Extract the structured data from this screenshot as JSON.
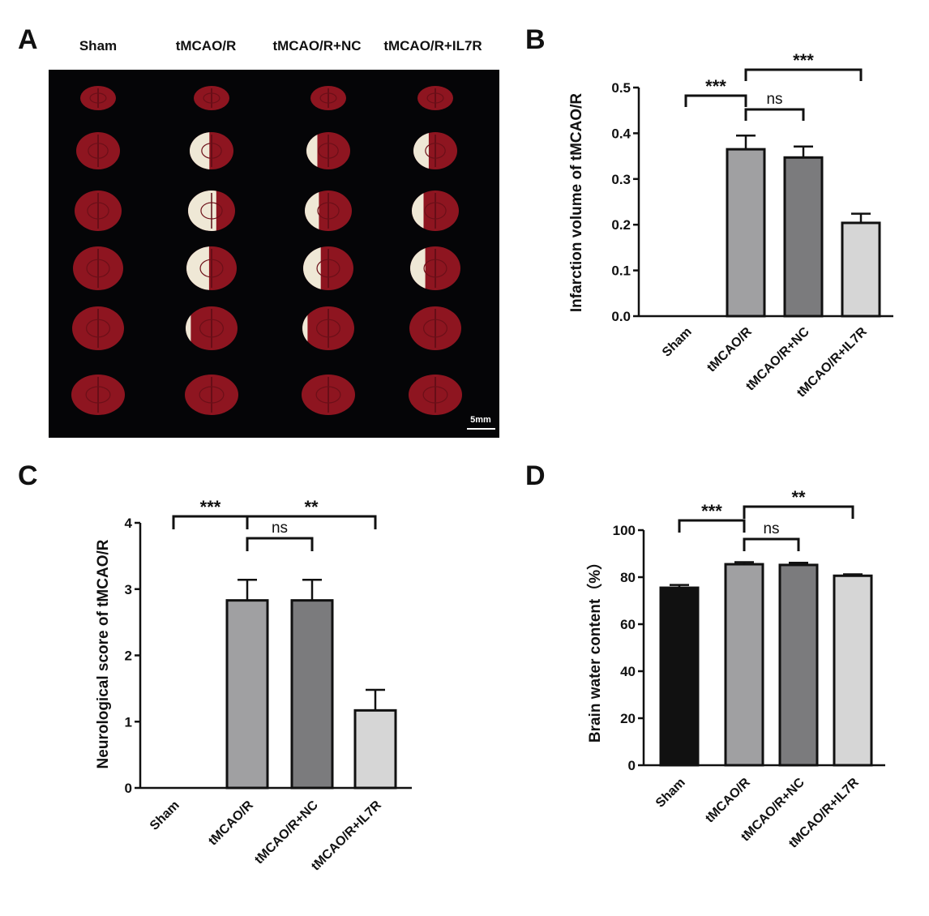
{
  "panel_a": {
    "letter": "A",
    "groups": [
      "Sham",
      "tMCAO/R",
      "tMCAO/R+NC",
      "tMCAO/R+IL7R"
    ],
    "scale_label": "5mm",
    "background_color": "#050507",
    "tissue_color": "#8e1520",
    "infarct_color": "#efe8d6"
  },
  "chart_data": [
    {
      "id": "B",
      "letter": "B",
      "type": "bar",
      "categories": [
        "Sham",
        "tMCAO/R",
        "tMCAO/R+NC",
        "tMCAO/R+IL7R"
      ],
      "values": [
        0,
        0.365,
        0.347,
        0.204
      ],
      "errors": [
        0,
        0.03,
        0.024,
        0.02
      ],
      "colors": [
        "#111111",
        "#a0a0a2",
        "#7b7b7d",
        "#d6d6d6"
      ],
      "ylabel": "Infarction volume of tMCAO/R",
      "ylim": [
        0,
        0.5
      ],
      "yticks": [
        "0.0",
        "0.1",
        "0.2",
        "0.3",
        "0.4",
        "0.5"
      ],
      "significance": [
        {
          "from": 0,
          "to": 1,
          "label": "***"
        },
        {
          "from": 1,
          "to": 2,
          "label": "ns"
        },
        {
          "from": 1,
          "to": 3,
          "label": "***"
        }
      ]
    },
    {
      "id": "C",
      "letter": "C",
      "type": "bar",
      "categories": [
        "Sham",
        "tMCAO/R",
        "tMCAO/R+NC",
        "tMCAO/R+IL7R"
      ],
      "values": [
        0,
        2.83,
        2.83,
        1.17
      ],
      "errors": [
        0,
        0.31,
        0.31,
        0.31
      ],
      "colors": [
        "#111111",
        "#a0a0a2",
        "#7b7b7d",
        "#d6d6d6"
      ],
      "ylabel": "Neurological score of tMCAO/R",
      "ylim": [
        0,
        4
      ],
      "yticks": [
        "0",
        "1",
        "2",
        "3",
        "4"
      ],
      "significance": [
        {
          "from": 0,
          "to": 1,
          "label": "***"
        },
        {
          "from": 1,
          "to": 2,
          "label": "ns"
        },
        {
          "from": 1,
          "to": 3,
          "label": "**"
        }
      ]
    },
    {
      "id": "D",
      "letter": "D",
      "type": "bar",
      "categories": [
        "Sham",
        "tMCAO/R",
        "tMCAO/R+NC",
        "tMCAO/R+IL7R"
      ],
      "values": [
        75.5,
        85.5,
        85.2,
        80.6
      ],
      "errors": [
        1.2,
        0.9,
        0.9,
        0.6
      ],
      "colors": [
        "#111111",
        "#a0a0a2",
        "#7b7b7d",
        "#d6d6d6"
      ],
      "ylabel": "Brain water content（%）",
      "ylim": [
        0,
        100
      ],
      "yticks": [
        "0",
        "20",
        "40",
        "60",
        "80",
        "100"
      ],
      "significance": [
        {
          "from": 0,
          "to": 1,
          "label": "***"
        },
        {
          "from": 1,
          "to": 2,
          "label": "ns"
        },
        {
          "from": 1,
          "to": 3,
          "label": "**"
        }
      ]
    }
  ]
}
